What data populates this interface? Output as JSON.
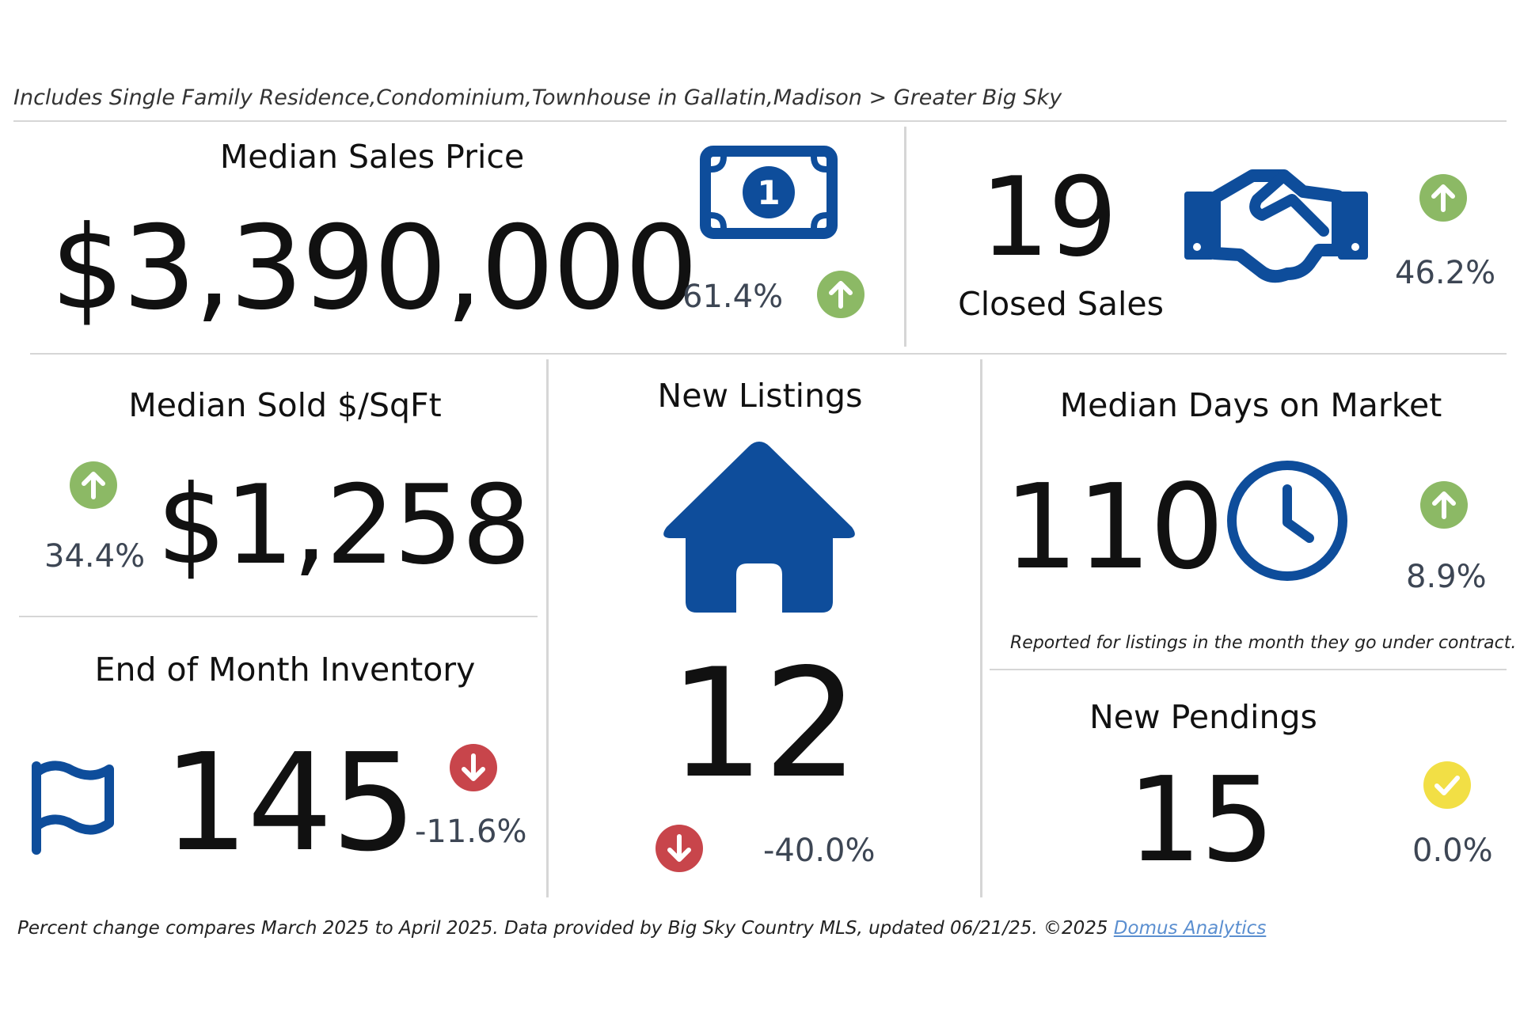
{
  "subtitle": "Includes Single Family Residence,Condominium,Townhouse in Gallatin,Madison > Greater Big Sky",
  "colors": {
    "icon_blue": "#0e4d9b",
    "up_green": "#8cb965",
    "down_red": "#c8454b",
    "flat_yellow": "#f2df45",
    "pct_text": "#3d4654",
    "link": "#5b8fd0"
  },
  "median_sales_price": {
    "title": "Median Sales Price",
    "value": "$3,390,000",
    "change": "61.4%",
    "direction": "up",
    "icon": "money-bill-icon"
  },
  "closed_sales": {
    "title": "Closed Sales",
    "value": "19",
    "change": "46.2%",
    "direction": "up",
    "icon": "handshake-icon"
  },
  "median_sold_sqft": {
    "title": "Median Sold $/SqFt",
    "value": "$1,258",
    "change": "34.4%",
    "direction": "up"
  },
  "new_listings": {
    "title": "New Listings",
    "value": "12",
    "change": "-40.0%",
    "direction": "down",
    "icon": "house-icon"
  },
  "median_dom": {
    "title": "Median Days on Market",
    "value": "110",
    "change": "8.9%",
    "direction": "up",
    "icon": "clock-icon",
    "note": "Reported for listings in the month they go under contract."
  },
  "inventory": {
    "title": "End of Month Inventory",
    "value": "145",
    "change": "-11.6%",
    "direction": "down",
    "icon": "flag-icon"
  },
  "new_pendings": {
    "title": "New Pendings",
    "value": "15",
    "change": "0.0%",
    "direction": "flat"
  },
  "footer": {
    "text": "Percent change compares March 2025 to April 2025.  Data provided by Big Sky Country MLS, updated 06/21/25. ©2025 ",
    "link_text": "Domus Analytics"
  }
}
